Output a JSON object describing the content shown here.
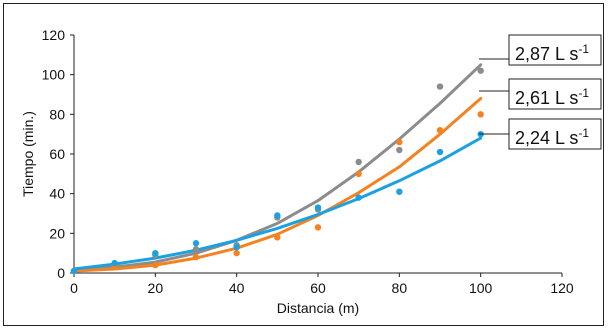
{
  "chart_data": {
    "type": "scatter",
    "xlabel": "Distancia (m)",
    "ylabel": "Tiempo (min.)",
    "xlim": [
      0,
      120
    ],
    "ylim": [
      0,
      120
    ],
    "xticks": [
      0,
      20,
      40,
      60,
      80,
      100,
      120
    ],
    "yticks": [
      0,
      20,
      40,
      60,
      80,
      100,
      120
    ],
    "grid": false,
    "trendline": "polynomial",
    "series": [
      {
        "name": "2,87 L s-1",
        "label_main": "2,87 L s",
        "label_sup": "-1",
        "color": "#8c8c8c",
        "x": [
          0,
          10,
          20,
          30,
          40,
          50,
          60,
          70,
          80,
          90,
          100
        ],
        "y": [
          1,
          4,
          9,
          12,
          14,
          28,
          32,
          56,
          62,
          94,
          102
        ],
        "fit_y": [
          2,
          3,
          5.5,
          10,
          16.5,
          25,
          36.5,
          51,
          67.5,
          85.5,
          105
        ]
      },
      {
        "name": "2,61 L s-1",
        "label_main": "2,61 L s",
        "label_sup": "-1",
        "color": "#f58220",
        "x": [
          0,
          10,
          20,
          30,
          40,
          50,
          60,
          70,
          80,
          90,
          100
        ],
        "y": [
          1,
          4,
          4,
          8,
          10,
          18,
          23,
          50,
          66,
          72,
          80
        ],
        "fit_y": [
          1,
          2,
          4,
          7.5,
          12.5,
          19.5,
          29,
          40.5,
          53.5,
          70,
          88
        ]
      },
      {
        "name": "2,24 L s-1",
        "label_main": "2,24 L s",
        "label_sup": "-1",
        "color": "#1ba1e2",
        "x": [
          0,
          10,
          20,
          30,
          40,
          50,
          60,
          70,
          80,
          90,
          100
        ],
        "y": [
          1,
          5,
          10,
          15,
          13,
          29,
          33,
          38,
          41,
          61,
          70
        ],
        "fit_y": [
          2,
          4.5,
          7.5,
          11.5,
          16.5,
          22.5,
          29.5,
          37.5,
          46.5,
          56.5,
          68
        ]
      }
    ]
  }
}
